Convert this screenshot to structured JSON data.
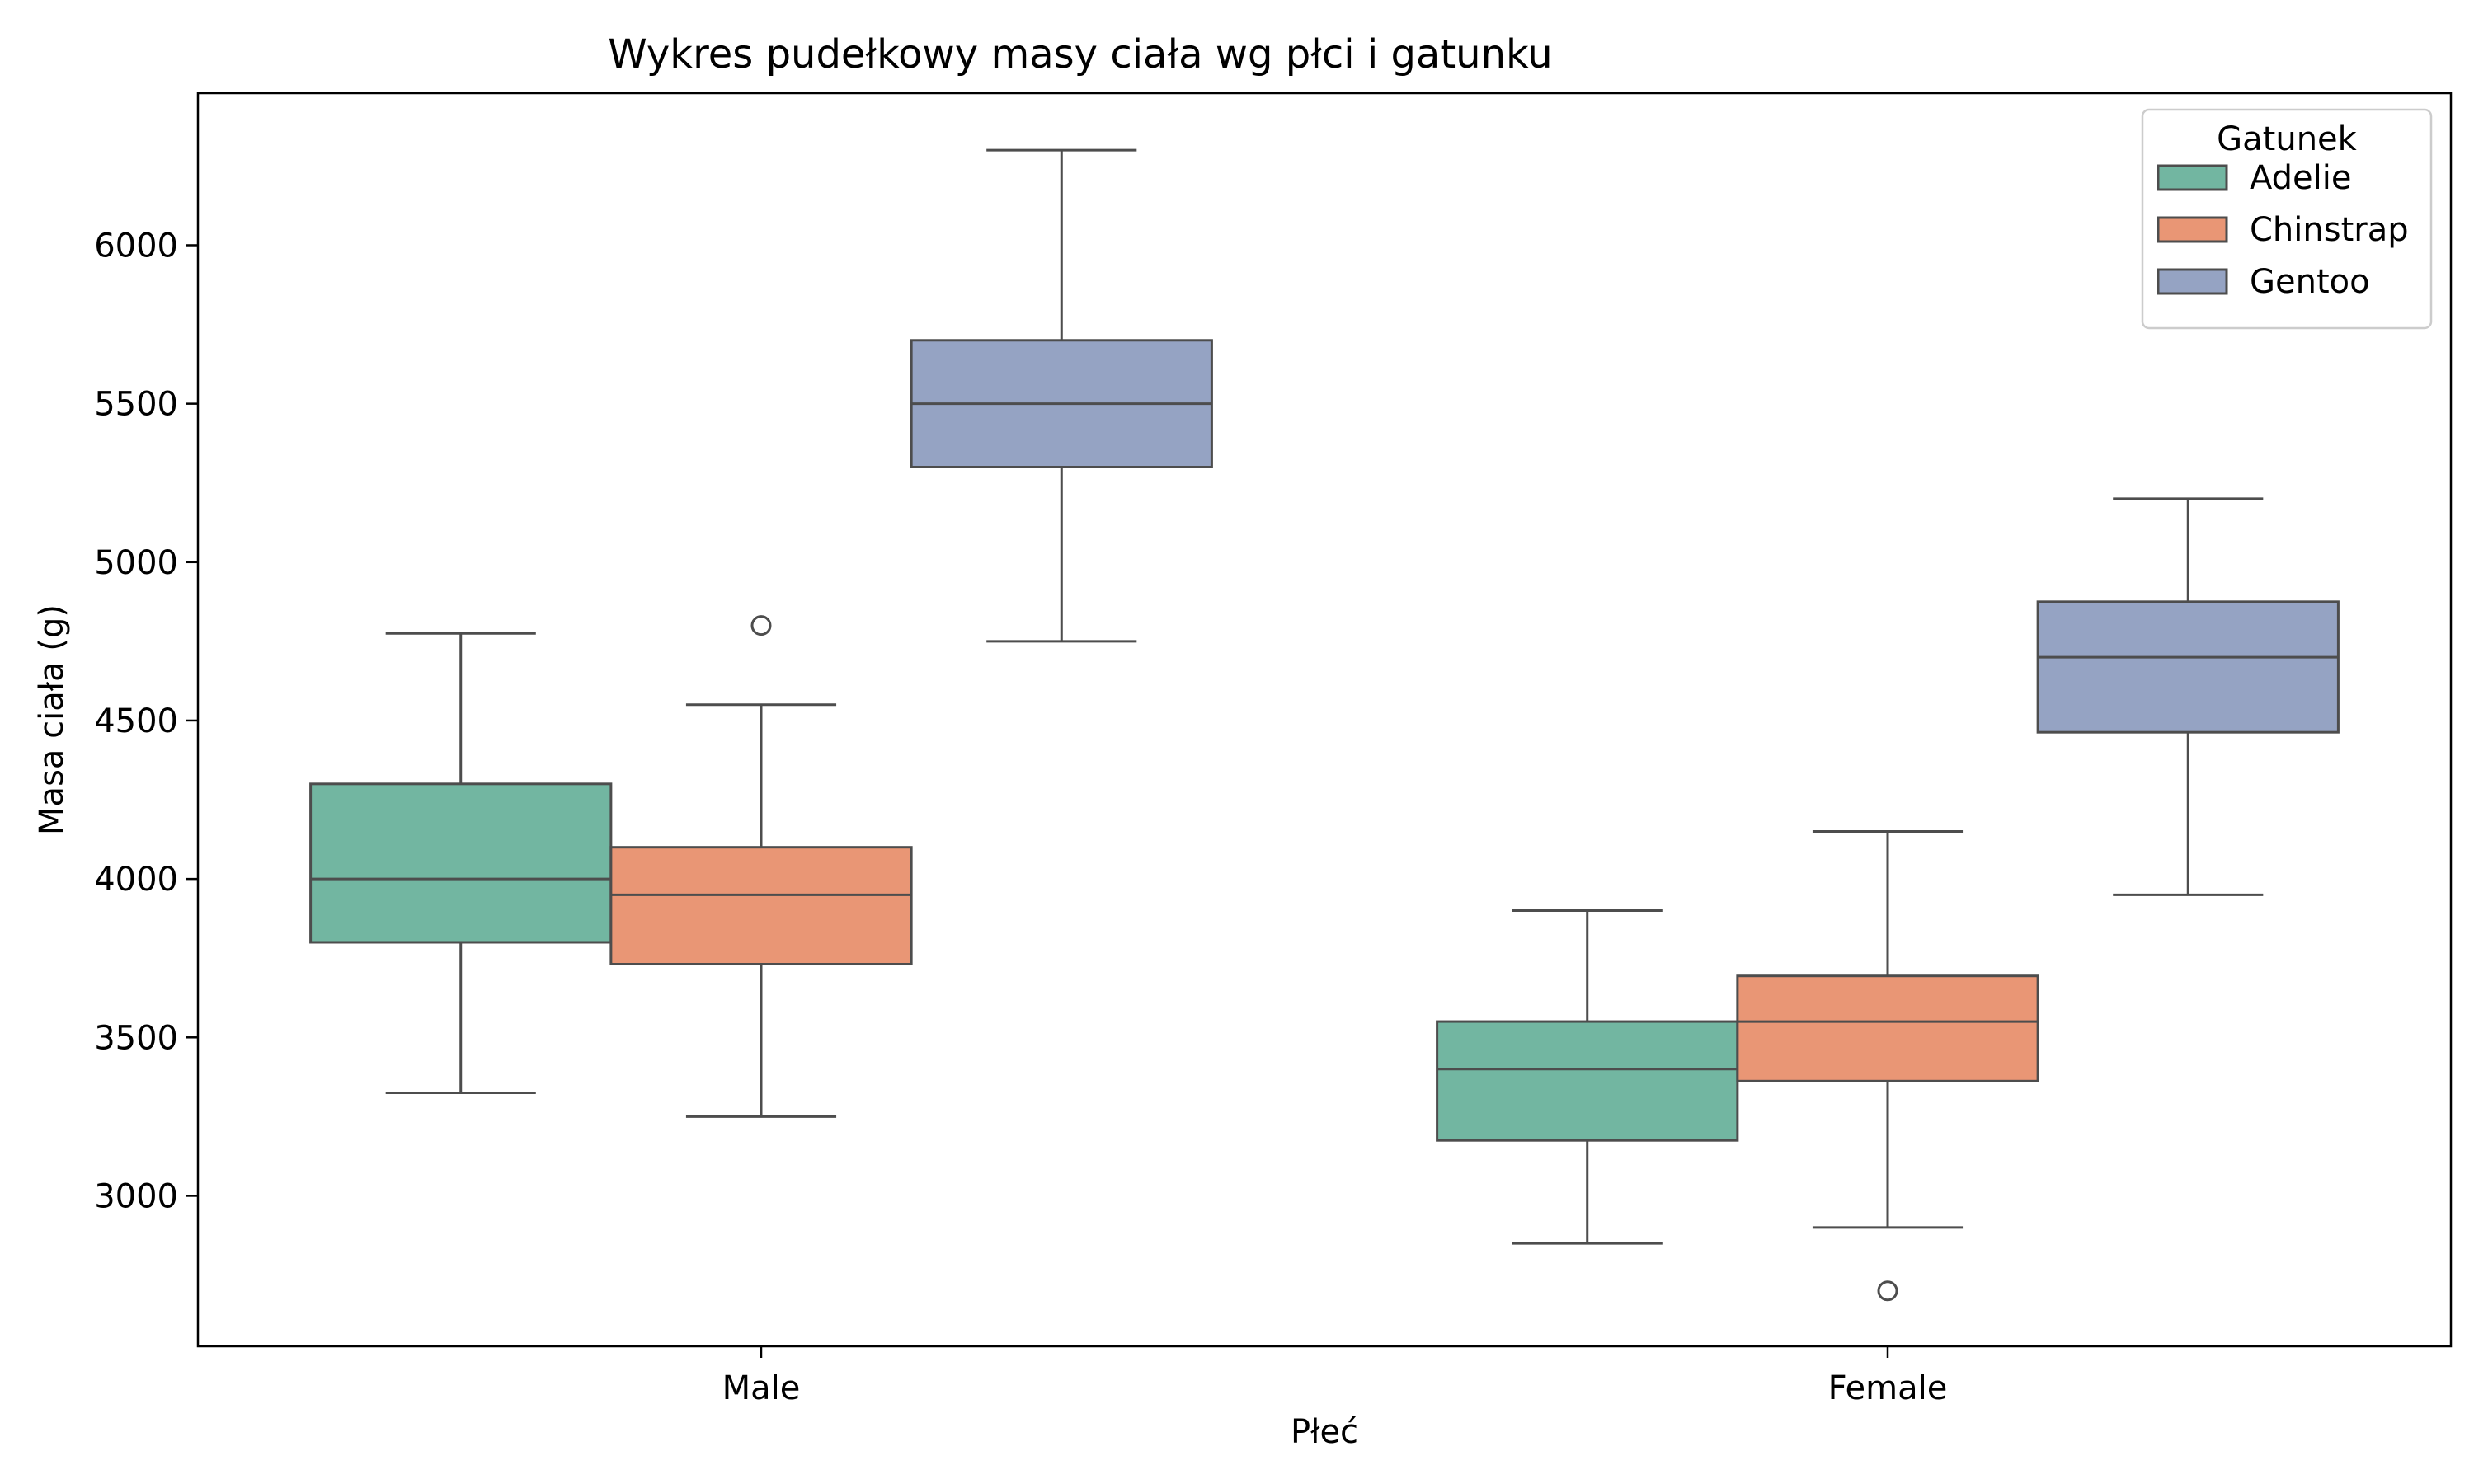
{
  "chart_data": {
    "type": "boxplot",
    "title": "Wykres pudełkowy masy ciała wg płci i gatunku",
    "xlabel": "Płeć",
    "ylabel": "Masa ciała (g)",
    "ylim": [
      2525,
      6480
    ],
    "yticks": [
      3000,
      3500,
      4000,
      4500,
      5000,
      5500,
      6000
    ],
    "categories": [
      "Male",
      "Female"
    ],
    "legend": {
      "title": "Gatunek",
      "placement": "top-right"
    },
    "series": [
      {
        "name": "Adelie",
        "color": "#72b6a1",
        "boxes": [
          {
            "category": "Male",
            "whisker_low": 3325,
            "q1": 3800,
            "median": 4000,
            "q3": 4300,
            "whisker_high": 4775,
            "outliers": []
          },
          {
            "category": "Female",
            "whisker_low": 2850,
            "q1": 3175,
            "median": 3400,
            "q3": 3550,
            "whisker_high": 3900,
            "outliers": []
          }
        ]
      },
      {
        "name": "Chinstrap",
        "color": "#e99675",
        "boxes": [
          {
            "category": "Male",
            "whisker_low": 3250,
            "q1": 3731,
            "median": 3950,
            "q3": 4100,
            "whisker_high": 4550,
            "outliers": [
              4800
            ]
          },
          {
            "category": "Female",
            "whisker_low": 2900,
            "q1": 3362,
            "median": 3550,
            "q3": 3694,
            "whisker_high": 4150,
            "outliers": [
              2700
            ]
          }
        ]
      },
      {
        "name": "Gentoo",
        "color": "#95a3c3",
        "boxes": [
          {
            "category": "Male",
            "whisker_low": 4750,
            "q1": 5300,
            "median": 5500,
            "q3": 5700,
            "whisker_high": 6300,
            "outliers": []
          },
          {
            "category": "Female",
            "whisker_low": 3950,
            "q1": 4463,
            "median": 4700,
            "q3": 4875,
            "whisker_high": 5200,
            "outliers": []
          }
        ]
      }
    ]
  }
}
